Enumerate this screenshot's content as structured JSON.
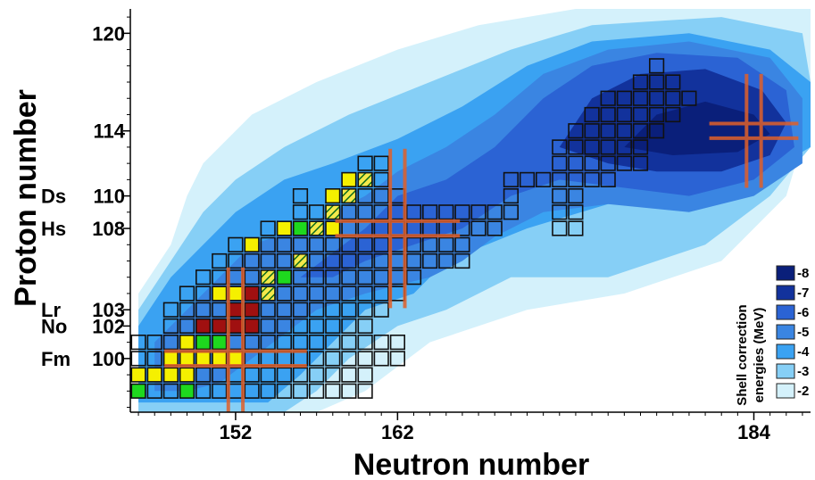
{
  "chart_data": {
    "type": "heatmap",
    "title": "",
    "xlabel": "Neutron number",
    "ylabel": "Proton number",
    "xlim": [
      145.5,
      187.5
    ],
    "ylim": [
      96.7,
      121.5
    ],
    "x_ticks": [
      152,
      162,
      184
    ],
    "x_tick_labels": [
      "152",
      "162",
      "184"
    ],
    "y_ticks": [
      {
        "z": 120,
        "label": "120",
        "element": ""
      },
      {
        "z": 114,
        "label": "114",
        "element": ""
      },
      {
        "z": 110,
        "label": "110",
        "element": "Ds"
      },
      {
        "z": 108,
        "label": "108",
        "element": "Hs"
      },
      {
        "z": 103,
        "label": "103",
        "element": "Lr"
      },
      {
        "z": 102,
        "label": "102",
        "element": "No"
      },
      {
        "z": 100,
        "label": "100",
        "element": "Fm"
      }
    ],
    "legend": {
      "title_line1": "Shell correction",
      "title_line2": "energies (MeV)",
      "placement": "bottom-right",
      "levels": [
        {
          "value": "-8",
          "color": "#0a1f7a"
        },
        {
          "value": "-7",
          "color": "#12329c"
        },
        {
          "value": "-6",
          "color": "#2b63d4"
        },
        {
          "value": "-5",
          "color": "#3a85e2"
        },
        {
          "value": "-4",
          "color": "#3aa2f2"
        },
        {
          "value": "-3",
          "color": "#86cff6"
        },
        {
          "value": "-2",
          "color": "#d4f1fb"
        }
      ]
    },
    "contours": [
      {
        "level": "-2",
        "poly": [
          [
            146,
            97
          ],
          [
            146,
            104
          ],
          [
            148,
            107
          ],
          [
            149,
            110
          ],
          [
            150,
            112
          ],
          [
            153,
            115
          ],
          [
            157,
            117
          ],
          [
            162,
            119
          ],
          [
            167,
            120.5
          ],
          [
            173,
            121.5
          ],
          [
            183,
            121.5
          ],
          [
            187.5,
            121.5
          ],
          [
            187.5,
            115
          ],
          [
            186,
            110
          ],
          [
            182,
            106
          ],
          [
            176,
            104
          ],
          [
            170,
            103
          ],
          [
            164,
            101
          ],
          [
            160,
            98
          ],
          [
            157,
            96.7
          ],
          [
            146,
            96.7
          ]
        ]
      },
      {
        "level": "-3",
        "poly": [
          [
            146,
            97
          ],
          [
            146,
            103
          ],
          [
            148,
            106
          ],
          [
            150,
            109
          ],
          [
            152,
            111
          ],
          [
            155,
            113
          ],
          [
            159,
            115
          ],
          [
            164,
            117
          ],
          [
            169,
            119
          ],
          [
            174,
            120.5
          ],
          [
            182,
            121
          ],
          [
            187,
            120
          ],
          [
            187.5,
            117
          ],
          [
            187.5,
            113
          ],
          [
            185,
            110
          ],
          [
            181,
            107
          ],
          [
            175,
            105
          ],
          [
            169,
            105
          ],
          [
            165,
            103
          ],
          [
            162,
            102
          ],
          [
            159,
            100
          ],
          [
            157,
            98
          ],
          [
            155,
            96.7
          ],
          [
            146,
            96.7
          ]
        ]
      },
      {
        "level": "-4",
        "poly": [
          [
            146,
            97.3
          ],
          [
            146,
            102
          ],
          [
            148,
            105
          ],
          [
            150,
            107
          ],
          [
            152,
            109
          ],
          [
            155,
            111
          ],
          [
            158,
            112
          ],
          [
            162,
            113.5
          ],
          [
            166,
            115.5
          ],
          [
            170,
            118
          ],
          [
            174,
            119.5
          ],
          [
            180,
            120
          ],
          [
            185,
            119
          ],
          [
            187.5,
            117
          ],
          [
            187.5,
            113
          ],
          [
            184,
            111
          ],
          [
            180,
            109.5
          ],
          [
            175,
            109.5
          ],
          [
            170,
            108
          ],
          [
            165,
            106
          ],
          [
            163,
            104
          ],
          [
            160,
            103
          ],
          [
            158,
            101
          ],
          [
            156,
            99
          ],
          [
            154,
            97.3
          ],
          [
            146,
            97.3
          ]
        ]
      },
      {
        "level": "-5",
        "poly": [
          [
            147,
            98
          ],
          [
            147,
            101
          ],
          [
            149,
            103
          ],
          [
            151,
            105
          ],
          [
            153,
            107
          ],
          [
            156,
            108
          ],
          [
            158,
            109
          ],
          [
            160,
            110
          ],
          [
            162,
            111.5
          ],
          [
            165,
            113
          ],
          [
            168,
            115
          ],
          [
            171,
            117.5
          ],
          [
            175,
            119
          ],
          [
            180,
            119.5
          ],
          [
            185,
            118.5
          ],
          [
            187,
            116
          ],
          [
            187,
            112
          ],
          [
            184,
            110
          ],
          [
            180,
            109
          ],
          [
            175,
            109.5
          ],
          [
            171,
            109
          ],
          [
            168,
            107.5
          ],
          [
            166,
            106
          ],
          [
            164,
            105
          ],
          [
            162,
            104.5
          ],
          [
            160,
            104
          ],
          [
            157,
            103
          ],
          [
            155,
            101.5
          ],
          [
            153,
            100
          ],
          [
            151,
            98.5
          ],
          [
            149,
            98
          ],
          [
            147,
            98
          ]
        ]
      },
      {
        "level": "-6",
        "poly": [
          [
            156,
            105
          ],
          [
            158,
            106.5
          ],
          [
            160,
            108
          ],
          [
            162,
            110
          ],
          [
            165,
            111
          ],
          [
            168,
            113
          ],
          [
            171,
            116
          ],
          [
            174,
            118
          ],
          [
            178,
            118.8
          ],
          [
            183,
            118.5
          ],
          [
            186,
            116.5
          ],
          [
            186.5,
            113
          ],
          [
            184,
            111
          ],
          [
            180,
            110
          ],
          [
            176,
            110.5
          ],
          [
            172,
            111
          ],
          [
            169,
            110
          ],
          [
            166,
            108
          ],
          [
            163,
            107
          ],
          [
            160,
            106
          ],
          [
            158,
            105
          ],
          [
            156,
            105
          ]
        ]
      },
      {
        "level": "-7",
        "poly": [
          [
            172,
            113
          ],
          [
            174,
            116
          ],
          [
            177,
            117.5
          ],
          [
            181,
            117.8
          ],
          [
            184.5,
            116.5
          ],
          [
            186,
            114.5
          ],
          [
            185,
            112.5
          ],
          [
            182,
            111.5
          ],
          [
            178,
            111.5
          ],
          [
            175,
            112
          ],
          [
            172,
            113
          ]
        ]
      },
      {
        "level": "-8",
        "poly": [
          [
            176,
            113
          ],
          [
            178,
            115
          ],
          [
            181,
            115.8
          ],
          [
            184,
            115
          ],
          [
            185,
            113.8
          ],
          [
            183,
            112.7
          ],
          [
            179,
            112.5
          ],
          [
            176,
            113
          ]
        ]
      }
    ],
    "nuclei": {
      "outlined": [
        {
          "z": 98,
          "n": [
            146,
            147,
            148,
            149,
            150,
            151,
            152,
            153,
            154,
            155,
            156,
            157,
            158,
            159,
            160
          ]
        },
        {
          "z": 99,
          "n": [
            146,
            147,
            148,
            149,
            150,
            151,
            152,
            153,
            154,
            155,
            156,
            157,
            158,
            159,
            160
          ]
        },
        {
          "z": 100,
          "n": [
            146,
            147,
            148,
            149,
            150,
            151,
            152,
            153,
            154,
            155,
            156,
            157,
            158,
            159,
            160,
            161,
            162
          ]
        },
        {
          "z": 101,
          "n": [
            146,
            147,
            148,
            149,
            150,
            151,
            152,
            153,
            154,
            155,
            156,
            157,
            158,
            159,
            160,
            161,
            162
          ]
        },
        {
          "z": 102,
          "n": [
            148,
            149,
            150,
            151,
            152,
            153,
            154,
            155,
            156,
            157,
            158,
            159,
            160
          ]
        },
        {
          "z": 103,
          "n": [
            148,
            149,
            150,
            151,
            152,
            153,
            154,
            155,
            156,
            157,
            158,
            159,
            160,
            161
          ]
        },
        {
          "z": 104,
          "n": [
            149,
            150,
            151,
            152,
            153,
            154,
            155,
            156,
            157,
            158,
            159,
            160,
            161,
            162
          ]
        },
        {
          "z": 105,
          "n": [
            150,
            151,
            152,
            153,
            154,
            155,
            156,
            157,
            158,
            159,
            160,
            161,
            162,
            163
          ]
        },
        {
          "z": 106,
          "n": [
            151,
            152,
            153,
            154,
            155,
            156,
            157,
            158,
            159,
            160,
            161,
            162,
            163,
            164,
            165,
            166
          ]
        },
        {
          "z": 107,
          "n": [
            152,
            153,
            154,
            155,
            156,
            157,
            158,
            159,
            160,
            161,
            162,
            163,
            164,
            165,
            166
          ]
        },
        {
          "z": 108,
          "n": [
            154,
            155,
            156,
            157,
            158,
            159,
            160,
            161,
            162,
            163,
            164,
            165,
            166,
            167,
            168,
            172,
            173
          ]
        },
        {
          "z": 109,
          "n": [
            156,
            157,
            158,
            159,
            160,
            161,
            162,
            163,
            164,
            165,
            166,
            167,
            168,
            169,
            172,
            173
          ]
        },
        {
          "z": 110,
          "n": [
            156,
            158,
            159,
            160,
            161,
            162,
            169,
            172,
            173
          ]
        },
        {
          "z": 111,
          "n": [
            159,
            160,
            161,
            169,
            170,
            171,
            172,
            173,
            174,
            175
          ]
        },
        {
          "z": 112,
          "n": [
            160,
            161,
            172,
            173,
            174,
            175,
            176,
            177
          ]
        },
        {
          "z": 113,
          "n": [
            172,
            173,
            174,
            175,
            176,
            177
          ]
        },
        {
          "z": 114,
          "n": [
            173,
            174,
            175,
            176,
            177,
            178
          ]
        },
        {
          "z": 115,
          "n": [
            174,
            175,
            176,
            177,
            178,
            179
          ]
        },
        {
          "z": 116,
          "n": [
            175,
            176,
            177,
            178,
            179,
            180
          ]
        },
        {
          "z": 117,
          "n": [
            177,
            178,
            179
          ]
        },
        {
          "z": 118,
          "n": [
            178
          ]
        }
      ],
      "yellow": [
        [
          99,
          146
        ],
        [
          99,
          147
        ],
        [
          99,
          148
        ],
        [
          99,
          149
        ],
        [
          100,
          148
        ],
        [
          100,
          149
        ],
        [
          100,
          150
        ],
        [
          100,
          151
        ],
        [
          100,
          152
        ],
        [
          101,
          149
        ],
        [
          104,
          151
        ],
        [
          104,
          152
        ],
        [
          104,
          153
        ],
        [
          106,
          156
        ],
        [
          107,
          153
        ],
        [
          108,
          155
        ],
        [
          108,
          156
        ],
        [
          108,
          157
        ],
        [
          108,
          158
        ],
        [
          110,
          158
        ],
        [
          111,
          159
        ]
      ],
      "green": [
        [
          98,
          146
        ],
        [
          98,
          149
        ],
        [
          101,
          150
        ],
        [
          101,
          151
        ],
        [
          105,
          155
        ],
        [
          108,
          156
        ],
        [
          110,
          159
        ]
      ],
      "darkred": [
        [
          102,
          150
        ],
        [
          102,
          151
        ],
        [
          102,
          152
        ],
        [
          102,
          153
        ],
        [
          103,
          152
        ],
        [
          103,
          153
        ],
        [
          104,
          153
        ]
      ],
      "hatched": [
        [
          104,
          154
        ],
        [
          105,
          154
        ],
        [
          106,
          156
        ],
        [
          108,
          157
        ],
        [
          109,
          158
        ],
        [
          110,
          159
        ],
        [
          111,
          160
        ]
      ]
    },
    "crosses": [
      {
        "n": 152,
        "z": 100,
        "len": 8
      },
      {
        "n": 162,
        "z": 108,
        "len": 7
      },
      {
        "n": 184,
        "z": 114,
        "len": 5
      }
    ]
  }
}
